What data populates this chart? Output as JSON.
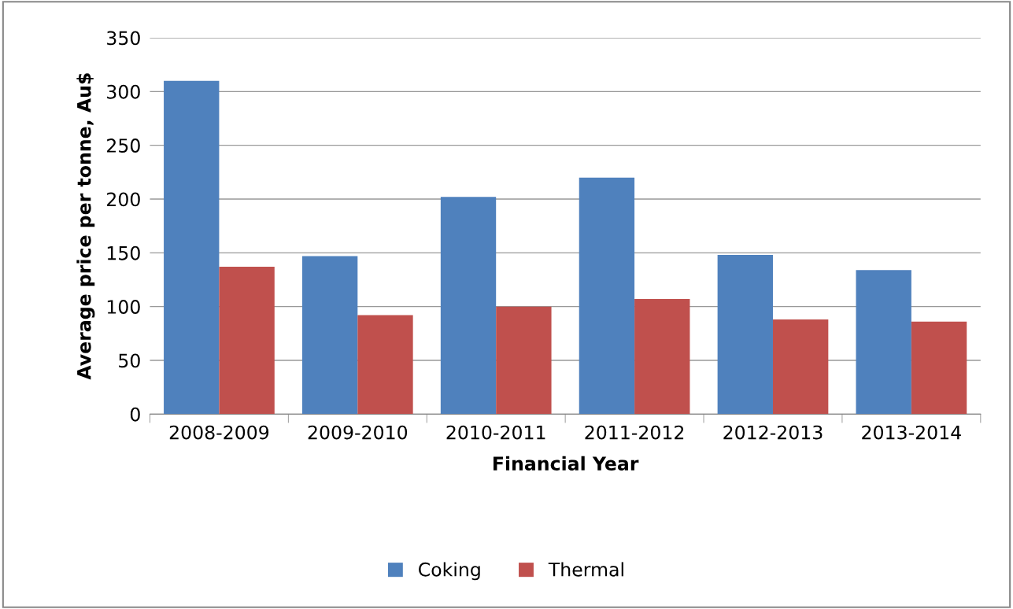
{
  "chart_data": {
    "type": "bar",
    "xlabel": "Financial Year",
    "ylabel": "Average price per tonne, Au$",
    "categories": [
      "2008-2009",
      "2009-2010",
      "2010-2011",
      "2011-2012",
      "2012-2013",
      "2013-2014"
    ],
    "series": [
      {
        "name": "Coking",
        "color": "#4f81bd",
        "values": [
          310,
          147,
          202,
          220,
          148,
          134
        ]
      },
      {
        "name": "Thermal",
        "color": "#c0504d",
        "values": [
          137,
          92,
          100,
          107,
          88,
          86
        ]
      }
    ],
    "ylim": [
      0,
      350
    ],
    "yticks": [
      0,
      50,
      100,
      150,
      200,
      250,
      300,
      350
    ],
    "grid": "y",
    "legend": "bottom"
  }
}
